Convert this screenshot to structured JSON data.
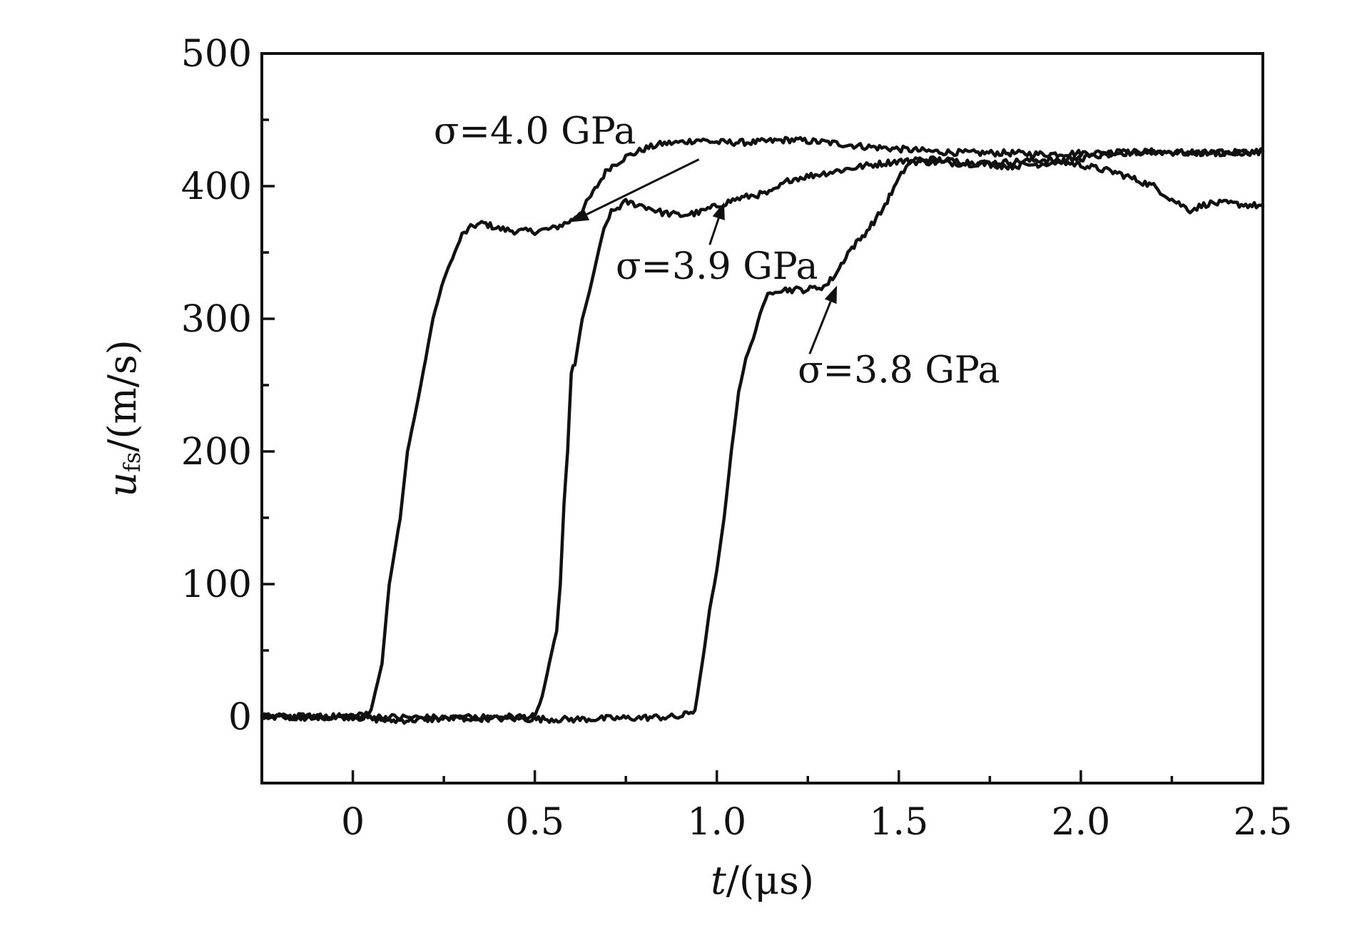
{
  "chart_data": {
    "type": "line",
    "title": "",
    "xlabel": {
      "main": "t",
      "unit": "/(μs)"
    },
    "ylabel": {
      "main": "u",
      "sub": "fs",
      "unit": "/(m/s)"
    },
    "xlim": [
      -0.25,
      2.5
    ],
    "ylim": [
      -50,
      500
    ],
    "xticks": [
      {
        "value": 0,
        "label": "0"
      },
      {
        "value": 0.5,
        "label": "0.5"
      },
      {
        "value": 1.0,
        "label": "1.0"
      },
      {
        "value": 1.5,
        "label": "1.5"
      },
      {
        "value": 2.0,
        "label": "2.0"
      },
      {
        "value": 2.5,
        "label": "2.5"
      }
    ],
    "yticks": [
      {
        "value": 0,
        "label": "0"
      },
      {
        "value": 100,
        "label": "100"
      },
      {
        "value": 200,
        "label": "200"
      },
      {
        "value": 300,
        "label": "300"
      },
      {
        "value": 400,
        "label": "400"
      },
      {
        "value": 500,
        "label": "500"
      }
    ],
    "grid": false,
    "legend": "none",
    "series": [
      {
        "x": [
          -0.25,
          -0.15,
          -0.05,
          0.0,
          0.03,
          0.05,
          0.08,
          0.1,
          0.13,
          0.15,
          0.18,
          0.2,
          0.22,
          0.25,
          0.28,
          0.3,
          0.33,
          0.36,
          0.4,
          0.45,
          0.5,
          0.55,
          0.6,
          0.63,
          0.66,
          0.7,
          0.75,
          0.8,
          0.85,
          0.9,
          0.95,
          1.0,
          1.1,
          1.2,
          1.3,
          1.4,
          1.5,
          1.6,
          1.7,
          1.8,
          1.9,
          2.0,
          2.1,
          2.2,
          2.3,
          2.4,
          2.5
        ],
        "y": [
          0,
          -1,
          0,
          0,
          2,
          5,
          40,
          100,
          150,
          200,
          240,
          270,
          300,
          330,
          350,
          363,
          370,
          372,
          368,
          366,
          366,
          368,
          374,
          382,
          395,
          413,
          422,
          428,
          432,
          433,
          435,
          433,
          433,
          435,
          433,
          430,
          428,
          426,
          425,
          425,
          424,
          425,
          425,
          426,
          425,
          425,
          426
        ]
      },
      {
        "x": [
          -0.25,
          0.0,
          0.1,
          0.2,
          0.3,
          0.4,
          0.5,
          0.52,
          0.54,
          0.56,
          0.57,
          0.58,
          0.59,
          0.6,
          0.61,
          0.63,
          0.65,
          0.67,
          0.69,
          0.71,
          0.75,
          0.8,
          0.85,
          0.9,
          0.95,
          1.0,
          1.05,
          1.1,
          1.15,
          1.2,
          1.3,
          1.4,
          1.5,
          1.6,
          1.7,
          1.8,
          1.9,
          2.0,
          2.1,
          2.2,
          2.25,
          2.3,
          2.35,
          2.4,
          2.5
        ],
        "y": [
          0,
          0,
          -3,
          -2,
          -1,
          0,
          0,
          15,
          40,
          65,
          100,
          160,
          200,
          260,
          265,
          300,
          320,
          345,
          368,
          380,
          388,
          385,
          380,
          378,
          380,
          385,
          390,
          393,
          395,
          405,
          410,
          415,
          419,
          418,
          417,
          418,
          420,
          416,
          410,
          400,
          390,
          382,
          387,
          387,
          385
        ]
      },
      {
        "x": [
          -0.25,
          0.0,
          0.3,
          0.6,
          0.9,
          0.94,
          0.96,
          0.98,
          1.0,
          1.02,
          1.04,
          1.06,
          1.08,
          1.1,
          1.12,
          1.14,
          1.16,
          1.2,
          1.25,
          1.3,
          1.33,
          1.36,
          1.4,
          1.45,
          1.48,
          1.5,
          1.52,
          1.54,
          1.6,
          1.7,
          1.8,
          1.9,
          2.0,
          2.1,
          2.2,
          2.3,
          2.4,
          2.5
        ],
        "y": [
          0,
          0,
          -1,
          -2,
          0,
          5,
          40,
          80,
          110,
          150,
          200,
          245,
          270,
          285,
          305,
          318,
          322,
          322,
          322,
          325,
          335,
          350,
          362,
          380,
          395,
          405,
          415,
          420,
          420,
          418,
          415,
          417,
          421,
          425,
          426,
          425,
          425,
          426
        ]
      }
    ],
    "annotations": [
      {
        "text": "σ=4.0 GPa",
        "tip_x": 0.6,
        "tip_y": 373,
        "text_x": 0.5,
        "text_y": 432
      },
      {
        "text": "σ=3.9 GPa",
        "tip_x": 1.02,
        "tip_y": 388,
        "text_x": 1.0,
        "text_y": 330
      },
      {
        "text": "σ=3.8 GPa",
        "tip_x": 1.33,
        "tip_y": 325,
        "text_x": 1.5,
        "text_y": 252
      }
    ]
  }
}
